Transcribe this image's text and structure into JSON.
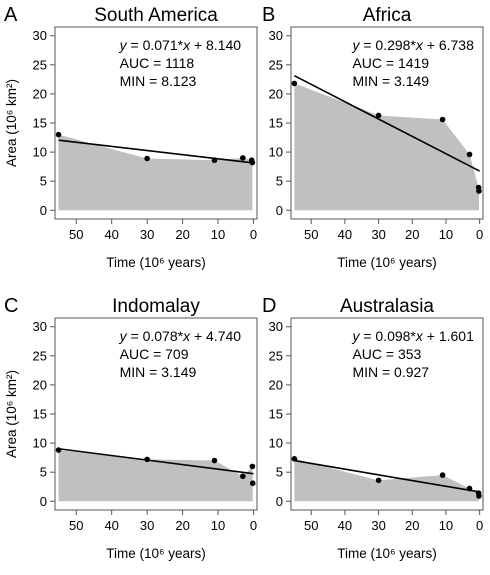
{
  "chart_data": [
    {
      "type": "area",
      "panel_letter": "A",
      "title": "South America",
      "xlabel": "Time (10⁶ years)",
      "ylabel": "Area (10⁶ km²)",
      "xlim": [
        56,
        -1
      ],
      "ylim": [
        -1.5,
        31.5
      ],
      "xticks": [
        50,
        40,
        30,
        20,
        10,
        0
      ],
      "yticks": [
        0,
        5,
        10,
        15,
        20,
        25,
        30
      ],
      "points": [
        [
          55,
          13.0
        ],
        [
          30,
          8.9
        ],
        [
          11,
          8.6
        ],
        [
          3,
          9.0
        ],
        [
          0.5,
          8.6
        ],
        [
          0.3,
          8.2
        ]
      ],
      "area_outline": [
        [
          55,
          13.0
        ],
        [
          30,
          8.9
        ],
        [
          11,
          8.6
        ],
        [
          3,
          9.0
        ],
        [
          0.5,
          8.6
        ],
        [
          0.3,
          8.2
        ]
      ],
      "fit": {
        "slope": 0.071,
        "intercept": 8.14,
        "x_range": [
          55,
          0
        ]
      },
      "annotation": {
        "equation_prefix": "y",
        "equation_rest": " = 0.071*",
        "equation_var": "x",
        "equation_tail": " + 8.140",
        "auc": "AUC = 1118",
        "min": "MIN = 8.123"
      },
      "grid": false
    },
    {
      "type": "area",
      "panel_letter": "B",
      "title": "Africa",
      "xlabel": "Time (10⁶ years)",
      "ylabel": "",
      "xlim": [
        56,
        -1
      ],
      "ylim": [
        -1.5,
        31.5
      ],
      "xticks": [
        50,
        40,
        30,
        20,
        10,
        0
      ],
      "yticks": [
        0,
        5,
        10,
        15,
        20,
        25,
        30
      ],
      "points": [
        [
          55,
          21.8
        ],
        [
          30,
          16.3
        ],
        [
          11,
          15.6
        ],
        [
          3,
          9.6
        ],
        [
          0.3,
          3.9
        ],
        [
          0.2,
          3.3
        ]
      ],
      "area_outline": [
        [
          55,
          21.8
        ],
        [
          30,
          16.3
        ],
        [
          11,
          15.6
        ],
        [
          3,
          9.6
        ],
        [
          0.3,
          3.9
        ],
        [
          0.2,
          3.3
        ]
      ],
      "fit": {
        "slope": 0.298,
        "intercept": 6.738,
        "x_range": [
          55,
          0
        ]
      },
      "annotation": {
        "equation_prefix": "y",
        "equation_rest": " = 0.298*",
        "equation_var": "x",
        "equation_tail": " + 6.738",
        "auc": "AUC = 1419",
        "min": "MIN = 3.149"
      },
      "grid": false
    },
    {
      "type": "area",
      "panel_letter": "C",
      "title": "Indomalay",
      "xlabel": "Time (10⁶ years)",
      "ylabel": "Area (10⁶ km²)",
      "xlim": [
        56,
        -1
      ],
      "ylim": [
        -1.5,
        31.5
      ],
      "xticks": [
        50,
        40,
        30,
        20,
        10,
        0
      ],
      "yticks": [
        0,
        5,
        10,
        15,
        20,
        25,
        30
      ],
      "points": [
        [
          55,
          8.8
        ],
        [
          30,
          7.2
        ],
        [
          11,
          7.0
        ],
        [
          3,
          4.3
        ],
        [
          0.3,
          6.0
        ],
        [
          0.2,
          3.1
        ]
      ],
      "area_outline": [
        [
          55,
          8.8
        ],
        [
          30,
          7.2
        ],
        [
          11,
          7.0
        ],
        [
          3,
          4.3
        ],
        [
          0.3,
          6.0
        ],
        [
          0.2,
          3.1
        ]
      ],
      "fit": {
        "slope": 0.078,
        "intercept": 4.74,
        "x_range": [
          55,
          0
        ]
      },
      "annotation": {
        "equation_prefix": "y",
        "equation_rest": " = 0.078*",
        "equation_var": "x",
        "equation_tail": " + 4.740",
        "auc": "AUC = 709",
        "min": "MIN = 3.149"
      },
      "grid": false
    },
    {
      "type": "area",
      "panel_letter": "D",
      "title": "Australasia",
      "xlabel": "Time (10⁶ years)",
      "ylabel": "",
      "xlim": [
        56,
        -1
      ],
      "ylim": [
        -1.5,
        31.5
      ],
      "xticks": [
        50,
        40,
        30,
        20,
        10,
        0
      ],
      "yticks": [
        0,
        5,
        10,
        15,
        20,
        25,
        30
      ],
      "points": [
        [
          55,
          7.3
        ],
        [
          30,
          3.6
        ],
        [
          11,
          4.5
        ],
        [
          3,
          2.2
        ],
        [
          0.3,
          1.4
        ],
        [
          0.2,
          0.9
        ]
      ],
      "area_outline": [
        [
          55,
          7.3
        ],
        [
          30,
          3.6
        ],
        [
          11,
          4.5
        ],
        [
          3,
          2.2
        ],
        [
          0.3,
          1.4
        ],
        [
          0.2,
          0.9
        ]
      ],
      "fit": {
        "slope": 0.098,
        "intercept": 1.601,
        "x_range": [
          55,
          0
        ]
      },
      "annotation": {
        "equation_prefix": "y",
        "equation_rest": " = 0.098*",
        "equation_var": "x",
        "equation_tail": " + 1.601",
        "auc": "AUC = 353",
        "min": "MIN = 0.927"
      },
      "grid": false
    }
  ],
  "colors": {
    "area_fill": "#c0c0c0",
    "fit_line": "#000000",
    "points": "#000000",
    "axes": "#555555"
  }
}
